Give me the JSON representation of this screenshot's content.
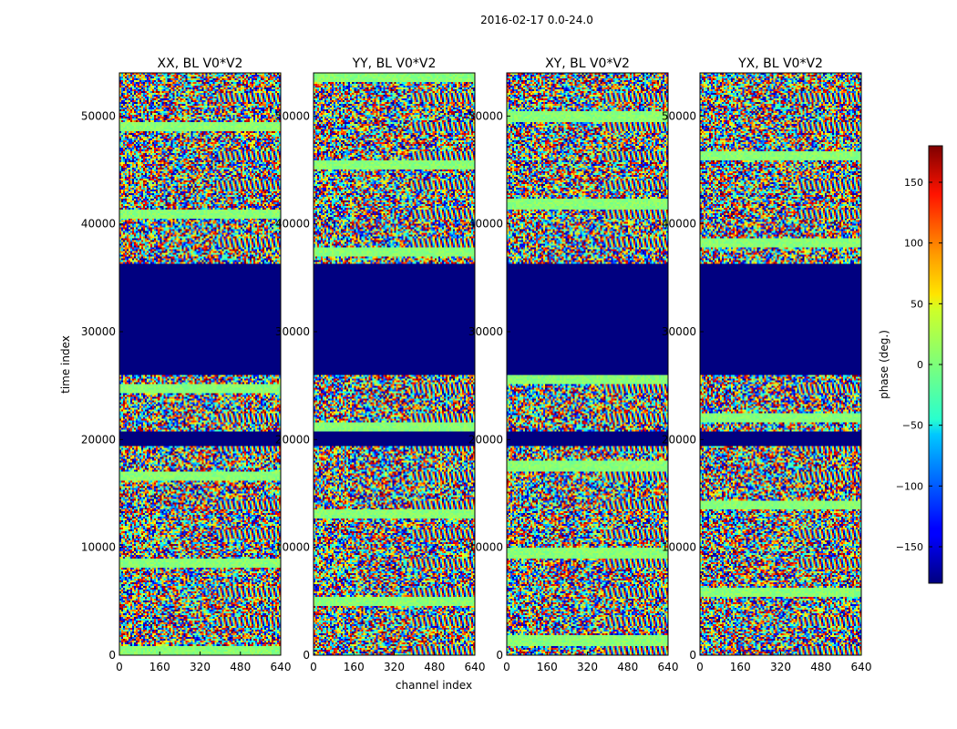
{
  "chart_data": {
    "type": "heatmap",
    "suptitle": "2016-02-17 0.0-24.0",
    "xlabel": "channel index",
    "ylabel": "time index",
    "xlim": [
      0,
      640
    ],
    "ylim": [
      0,
      54000
    ],
    "xticks": [
      0,
      160,
      320,
      480,
      640
    ],
    "yticks": [
      0,
      10000,
      20000,
      30000,
      40000,
      50000
    ],
    "colormap": "jet",
    "colorbar": {
      "label": "phase (deg.)",
      "range": [
        -180,
        180
      ],
      "ticks": [
        150,
        100,
        50,
        0,
        -50,
        -100,
        -150
      ],
      "tick_labels": [
        "150",
        "100",
        "50",
        "0",
        "−50",
        "−100",
        "−150"
      ]
    },
    "panels": [
      {
        "title": "XX, BL V0*V2",
        "polarization": "XX"
      },
      {
        "title": "YY, BL V0*V2",
        "polarization": "YY"
      },
      {
        "title": "XY, BL V0*V2",
        "polarization": "XY"
      },
      {
        "title": "YX, BL V0*V2",
        "polarization": "YX"
      }
    ],
    "blank_rows": [
      {
        "from": 26000,
        "to": 36300,
        "note": "no data (flagged)"
      },
      {
        "from": 19400,
        "to": 20700,
        "note": "no data (flagged)"
      }
    ]
  }
}
